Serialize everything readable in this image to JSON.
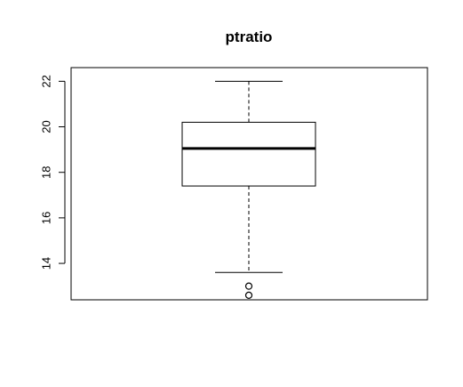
{
  "chart_data": {
    "type": "boxplot",
    "title": "ptratio",
    "xlabel": "",
    "ylabel": "",
    "ylim": [
      12.4,
      22.6
    ],
    "yticks": [
      14,
      16,
      18,
      20,
      22
    ],
    "ytick_labels": [
      "14",
      "16",
      "18",
      "20",
      "22"
    ],
    "grid": false,
    "legend": "none",
    "series": [
      {
        "whisker_low": 13.6,
        "q1": 17.4,
        "median": 19.05,
        "q3": 20.2,
        "whisker_high": 22.0,
        "outliers": [
          13.0,
          12.6
        ]
      }
    ],
    "colors": {
      "stroke": "#000000",
      "background": "#ffffff"
    }
  }
}
